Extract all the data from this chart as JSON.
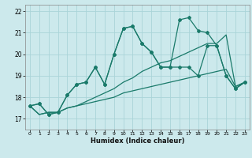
{
  "title": "",
  "xlabel": "Humidex (Indice chaleur)",
  "bg_color": "#cce9ec",
  "grid_color": "#aad4d8",
  "line_color": "#1a7a6a",
  "xlim": [
    -0.5,
    23.5
  ],
  "ylim": [
    16.5,
    22.3
  ],
  "xticks": [
    0,
    1,
    2,
    3,
    4,
    5,
    6,
    7,
    8,
    9,
    10,
    11,
    12,
    13,
    14,
    15,
    16,
    17,
    18,
    19,
    20,
    21,
    22,
    23
  ],
  "yticks": [
    17,
    18,
    19,
    20,
    21,
    22
  ],
  "line1": {
    "x": [
      0,
      1,
      2,
      3,
      4,
      5,
      6,
      7,
      8,
      9,
      10,
      11,
      12,
      13,
      14,
      15,
      16,
      17,
      18,
      19,
      20,
      21,
      22,
      23
    ],
    "y": [
      17.6,
      17.2,
      17.3,
      17.3,
      17.5,
      17.6,
      17.7,
      17.8,
      17.9,
      18.0,
      18.2,
      18.3,
      18.4,
      18.5,
      18.6,
      18.7,
      18.8,
      18.9,
      19.0,
      19.1,
      19.2,
      19.3,
      18.5,
      18.7
    ]
  },
  "line2": {
    "x": [
      0,
      1,
      2,
      3,
      4,
      5,
      6,
      7,
      8,
      9,
      10,
      11,
      12,
      13,
      14,
      15,
      16,
      17,
      18,
      19,
      20,
      21,
      22,
      23
    ],
    "y": [
      17.6,
      17.2,
      17.3,
      17.3,
      17.5,
      17.6,
      17.8,
      18.0,
      18.2,
      18.4,
      18.7,
      18.9,
      19.2,
      19.4,
      19.6,
      19.7,
      19.9,
      20.1,
      20.3,
      20.5,
      20.5,
      20.9,
      18.5,
      18.7
    ]
  },
  "line3": {
    "x": [
      0,
      1,
      2,
      3,
      4,
      5,
      6,
      7,
      8,
      9,
      10,
      11,
      12,
      13,
      14,
      15,
      16,
      17,
      18,
      19,
      20,
      21,
      22,
      23
    ],
    "y": [
      17.6,
      17.7,
      17.2,
      17.3,
      18.1,
      18.6,
      18.7,
      19.4,
      18.6,
      20.0,
      21.2,
      21.3,
      20.5,
      20.1,
      19.4,
      19.4,
      19.4,
      19.4,
      19.0,
      20.4,
      20.4,
      19.0,
      18.4,
      18.7
    ]
  },
  "line4": {
    "x": [
      0,
      1,
      2,
      3,
      4,
      5,
      6,
      7,
      8,
      9,
      10,
      11,
      12,
      13,
      14,
      15,
      16,
      17,
      18,
      19,
      20,
      21,
      22,
      23
    ],
    "y": [
      17.6,
      17.7,
      17.2,
      17.3,
      18.1,
      18.6,
      18.7,
      19.4,
      18.6,
      20.0,
      21.2,
      21.3,
      20.5,
      20.1,
      19.4,
      19.4,
      21.6,
      21.7,
      21.1,
      21.0,
      20.4,
      19.0,
      18.4,
      18.7
    ]
  }
}
